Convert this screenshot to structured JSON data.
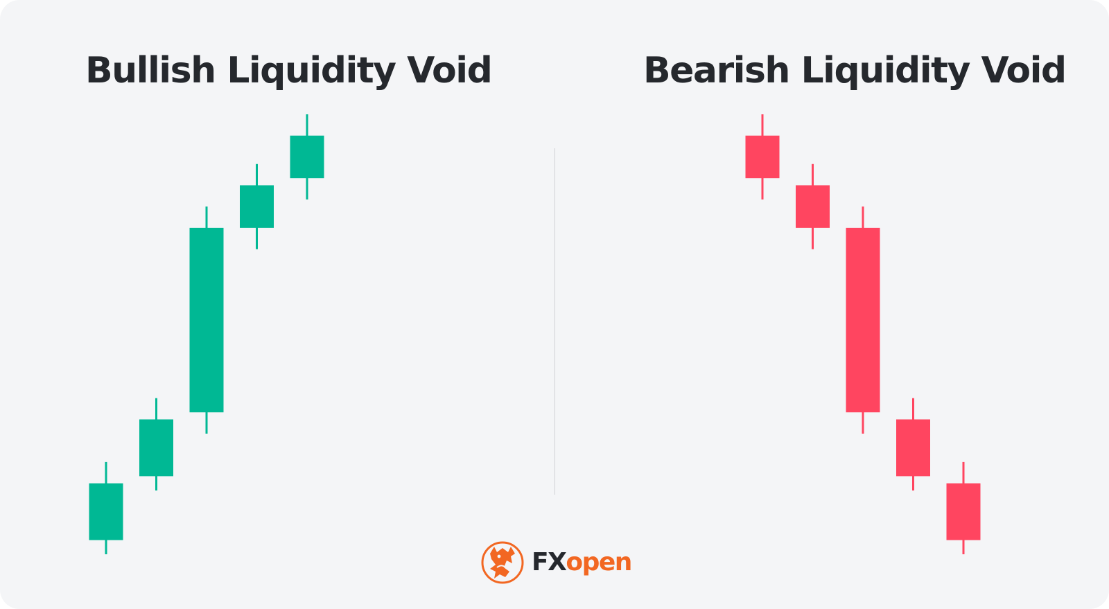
{
  "panels": {
    "left_title": "Bullish Liquidity Void",
    "right_title": "Bearish Liquidity Void"
  },
  "colors": {
    "bullish": "#00b894",
    "bearish": "#ff4560",
    "divider": "#cfd1d5",
    "background": "#f4f5f7",
    "title": "#25282d",
    "brand": "#f26722"
  },
  "chart_data": [
    {
      "type": "candlestick",
      "title": "Bullish Liquidity Void",
      "direction": "bullish",
      "candles": [
        {
          "open": 12,
          "close": 20,
          "high": 23,
          "low": 10
        },
        {
          "open": 21,
          "close": 29,
          "high": 32,
          "low": 19
        },
        {
          "open": 30,
          "close": 56,
          "high": 59,
          "low": 27
        },
        {
          "open": 56,
          "close": 62,
          "high": 65,
          "low": 53
        },
        {
          "open": 63,
          "close": 69,
          "high": 72,
          "low": 60
        }
      ]
    },
    {
      "type": "candlestick",
      "title": "Bearish Liquidity Void",
      "direction": "bearish",
      "candles": [
        {
          "open": 69,
          "close": 63,
          "high": 72,
          "low": 60
        },
        {
          "open": 62,
          "close": 56,
          "high": 65,
          "low": 53
        },
        {
          "open": 56,
          "close": 30,
          "high": 59,
          "low": 27
        },
        {
          "open": 29,
          "close": 21,
          "high": 32,
          "low": 19
        },
        {
          "open": 20,
          "close": 12,
          "high": 23,
          "low": 10
        }
      ]
    }
  ],
  "logo": {
    "text_fx": "FX",
    "text_open": "open",
    "icon": "bull-bear-emblem-icon"
  }
}
